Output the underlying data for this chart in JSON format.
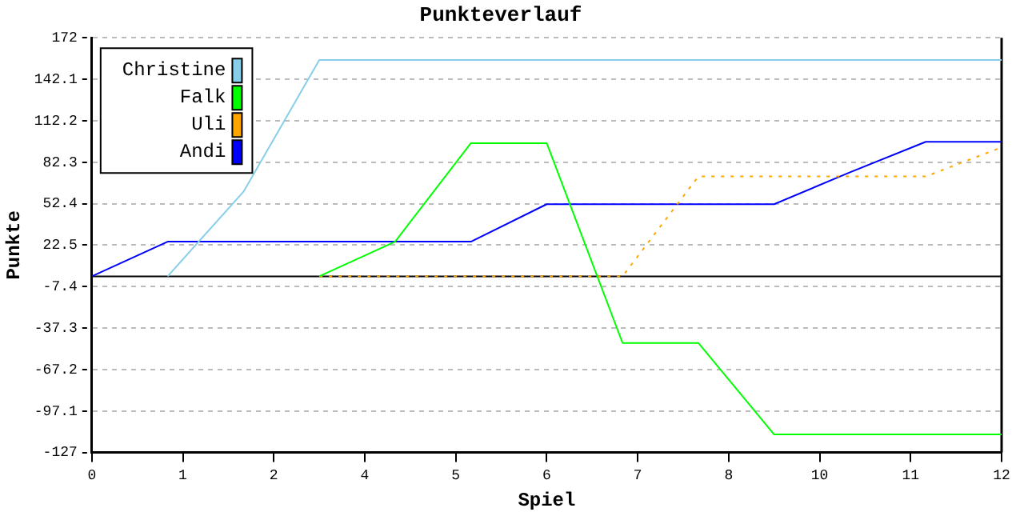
{
  "chart_data": {
    "type": "line",
    "title": "Punkteverlauf",
    "xlabel": "Spiel",
    "ylabel": "Punkte",
    "x": [
      0,
      1,
      2,
      3,
      4,
      5,
      6,
      7,
      8,
      9,
      10,
      11,
      12
    ],
    "series": [
      {
        "name": "Christine",
        "color": "#87ceeb",
        "values": [
          null,
          0,
          61,
          156,
          156,
          156,
          156,
          156,
          156,
          156,
          156,
          156,
          156
        ]
      },
      {
        "name": "Falk",
        "color": "#00ff00",
        "values": [
          null,
          null,
          null,
          0,
          25,
          96,
          96,
          -48,
          -48,
          -114,
          -114,
          -114,
          -114
        ]
      },
      {
        "name": "Uli",
        "color": "#ffa500",
        "line_style": "dotted",
        "values": [
          null,
          null,
          null,
          0,
          0,
          0,
          0,
          0,
          72,
          72,
          72,
          72,
          93
        ]
      },
      {
        "name": "Andi",
        "color": "#0000ff",
        "values": [
          0,
          25,
          25,
          25,
          25,
          25,
          52,
          52,
          52,
          52,
          75,
          97,
          97
        ]
      }
    ],
    "xlim": [
      0,
      12
    ],
    "xticks": [
      0,
      {
        "value": 1.2,
        "label": "1"
      },
      {
        "value": 2.4,
        "label": "2"
      },
      {
        "value": 3.6,
        "label": "4"
      },
      {
        "value": 4.8,
        "label": "5"
      },
      {
        "value": 6,
        "label": "6"
      },
      {
        "value": 7.2,
        "label": "7"
      },
      {
        "value": 8.4,
        "label": "8"
      },
      {
        "value": 9.6,
        "label": "10"
      },
      {
        "value": 10.8,
        "label": "11"
      },
      12
    ],
    "ylim": [
      -127,
      172
    ],
    "yticks": [
      -127,
      -97.1,
      -67.2,
      -37.3,
      -7.4,
      22.5,
      52.4,
      82.3,
      112.2,
      142.1,
      172
    ],
    "ref_lines": [
      {
        "axis": "y",
        "value": 0,
        "color": "#000000"
      }
    ],
    "grid": "y",
    "legend": "top left",
    "marker": "none",
    "line_style": "solid"
  }
}
